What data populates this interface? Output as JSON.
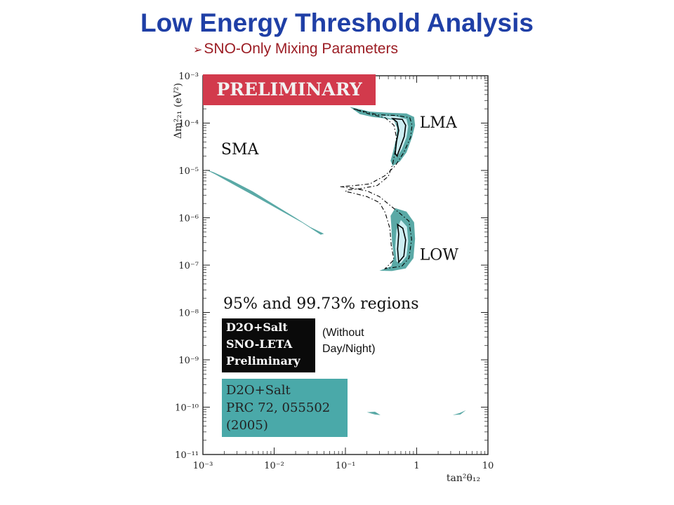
{
  "slide": {
    "title": "Low Energy Threshold Analysis",
    "subtitle": "SNO-Only Mixing Parameters",
    "note_line1": "(Without",
    "note_line2": "Day/Night)"
  },
  "chart_data": {
    "type": "contour",
    "xlabel": "tan²θ₁₂",
    "ylabel": "Δm²₂₁ (eV²)",
    "xscale": "log",
    "yscale": "log",
    "xlim": [
      0.001,
      10
    ],
    "ylim": [
      1e-11,
      0.001
    ],
    "x_ticks": [
      {
        "value": 0.001,
        "label": "10⁻³"
      },
      {
        "value": 0.01,
        "label": "10⁻²"
      },
      {
        "value": 0.1,
        "label": "10⁻¹"
      },
      {
        "value": 1,
        "label": "1"
      },
      {
        "value": 10,
        "label": "10"
      }
    ],
    "y_ticks": [
      {
        "value": 1e-11,
        "label": "10⁻¹¹"
      },
      {
        "value": 1e-10,
        "label": "10⁻¹⁰"
      },
      {
        "value": 1e-09,
        "label": "10⁻⁹"
      },
      {
        "value": 1e-08,
        "label": "10⁻⁸"
      },
      {
        "value": 1e-07,
        "label": "10⁻⁷"
      },
      {
        "value": 1e-06,
        "label": "10⁻⁶"
      },
      {
        "value": 1e-05,
        "label": "10⁻⁵"
      },
      {
        "value": 0.0001,
        "label": "10⁻⁴"
      },
      {
        "value": 0.001,
        "label": "10⁻³"
      }
    ],
    "banner": "PRELIMINARY",
    "regions_label": "95% and 99.73% regions",
    "region_labels": [
      {
        "text": "SMA",
        "x": 0.0018,
        "y": 2.2e-05
      },
      {
        "text": "LMA",
        "x": 1.1,
        "y": 8e-05
      },
      {
        "text": "LOW",
        "x": 1.1,
        "y": 1.3e-07
      }
    ],
    "legend": [
      {
        "lines": [
          "D2O+Salt",
          "SNO-LETA",
          "Preliminary"
        ],
        "style": "black-outline-contours",
        "bg": "#0a0a0a",
        "fg": "#ffffff"
      },
      {
        "lines": [
          "D2O+Salt",
          "PRC 72, 055502",
          "(2005)"
        ],
        "style": "filled-teal",
        "bg": "#4aa9a9",
        "fg": "#222222"
      }
    ],
    "colors": {
      "banner": "#d23a4c",
      "fill_outer": "#5aa9a6",
      "fill_inner": "#cdeef2",
      "contour": "#000000"
    },
    "regions": {
      "lma_outer_fill": [
        [
          0.115,
          0.00022
        ],
        [
          0.22,
          0.000175
        ],
        [
          0.4,
          0.000165
        ],
        [
          0.72,
          0.00016
        ],
        [
          0.92,
          0.000135
        ],
        [
          0.95,
          9e-05
        ],
        [
          0.86,
          5e-05
        ],
        [
          0.72,
          2.4e-05
        ],
        [
          0.58,
          1.55e-05
        ],
        [
          0.46,
          1.25e-05
        ],
        [
          0.43,
          1.6e-05
        ],
        [
          0.47,
          2.6e-05
        ],
        [
          0.52,
          5e-05
        ],
        [
          0.53,
          8e-05
        ],
        [
          0.48,
          0.000115
        ],
        [
          0.37,
          0.000125
        ],
        [
          0.24,
          0.000135
        ],
        [
          0.16,
          0.000155
        ]
      ],
      "lma_inner_fill": [
        [
          0.3,
          0.000142
        ],
        [
          0.5,
          0.00014
        ],
        [
          0.72,
          0.000122
        ],
        [
          0.76,
          8.5e-05
        ],
        [
          0.72,
          5e-05
        ],
        [
          0.62,
          2.8e-05
        ],
        [
          0.52,
          1.85e-05
        ],
        [
          0.49,
          2.6e-05
        ],
        [
          0.54,
          5e-05
        ],
        [
          0.55,
          8.5e-05
        ],
        [
          0.48,
          0.00012
        ]
      ],
      "low_outer_fill": [
        [
          0.5,
          1.6e-06
        ],
        [
          0.72,
          1.35e-06
        ],
        [
          0.92,
          8e-07
        ],
        [
          0.95,
          3.6e-07
        ],
        [
          0.9,
          1.4e-07
        ],
        [
          0.7,
          8.5e-08
        ],
        [
          0.45,
          7.5e-08
        ],
        [
          0.3,
          7.6e-08
        ],
        [
          0.44,
          9.5e-08
        ],
        [
          0.48,
          1.5e-07
        ],
        [
          0.45,
          3.2e-07
        ],
        [
          0.44,
          7e-07
        ],
        [
          0.43,
          1.1e-06
        ]
      ],
      "low_inner_fill": [
        [
          0.6,
          9e-07
        ],
        [
          0.73,
          6.5e-07
        ],
        [
          0.76,
          3.2e-07
        ],
        [
          0.72,
          1.55e-07
        ],
        [
          0.6,
          1.1e-07
        ],
        [
          0.52,
          1.2e-07
        ],
        [
          0.5,
          2.4e-07
        ],
        [
          0.52,
          5.5e-07
        ]
      ],
      "sma_band_fill": [
        [
          0.00109,
          1.05e-05
        ],
        [
          0.0015,
          8.2e-06
        ],
        [
          0.003,
          4.6e-06
        ],
        [
          0.006,
          2.6e-06
        ],
        [
          0.012,
          1.45e-06
        ],
        [
          0.025,
          7.8e-07
        ],
        [
          0.045,
          4.4e-07
        ],
        [
          0.05,
          4.6e-07
        ],
        [
          0.032,
          6.4e-07
        ],
        [
          0.02,
          1e-06
        ],
        [
          0.01,
          1.9e-06
        ],
        [
          0.005,
          3.6e-06
        ],
        [
          0.0025,
          6.2e-06
        ],
        [
          0.0014,
          9.2e-06
        ]
      ],
      "small_islands_fill": [
        [
          [
            0.2,
            7.8e-11
          ],
          [
            0.26,
            7e-11
          ],
          [
            0.31,
            6.8e-11
          ],
          [
            0.26,
            8e-11
          ]
        ],
        [
          [
            3.2,
            6.8e-11
          ],
          [
            4.0,
            7.5e-11
          ],
          [
            4.9,
            8.6e-11
          ],
          [
            4.1,
            7e-11
          ]
        ]
      ],
      "contour_9973": [
        [
          0.13,
          0.0002
        ],
        [
          0.28,
          0.00015
        ],
        [
          0.52,
          0.000145
        ],
        [
          0.8,
          0.00013
        ],
        [
          0.86,
          9e-05
        ],
        [
          0.82,
          5e-05
        ],
        [
          0.66,
          2.4e-05
        ],
        [
          0.5,
          1.25e-05
        ],
        [
          0.36,
          7.8e-06
        ],
        [
          0.22,
          5.2e-06
        ],
        [
          0.12,
          4.7e-06
        ],
        [
          0.085,
          4.55e-06
        ],
        [
          0.12,
          4.25e-06
        ],
        [
          0.2,
          3.7e-06
        ],
        [
          0.3,
          2.8e-06
        ],
        [
          0.41,
          1.9e-06
        ],
        [
          0.56,
          1.3e-06
        ],
        [
          0.78,
          8.5e-07
        ],
        [
          0.85,
          3.5e-07
        ],
        [
          0.78,
          1.4e-07
        ],
        [
          0.62,
          9.5e-08
        ],
        [
          0.36,
          8.4e-08
        ],
        [
          0.48,
          1.3e-07
        ],
        [
          0.44,
          2.6e-07
        ],
        [
          0.42,
          6e-07
        ],
        [
          0.36,
          1.3e-06
        ],
        [
          0.3,
          2.1e-06
        ],
        [
          0.2,
          2.8e-06
        ],
        [
          0.13,
          3.3e-06
        ],
        [
          0.1,
          3.6e-06
        ],
        [
          0.11,
          3.9e-06
        ],
        [
          0.16,
          4.1e-06
        ],
        [
          0.28,
          4.8e-06
        ],
        [
          0.4,
          7.5e-06
        ],
        [
          0.46,
          1.35e-05
        ],
        [
          0.5,
          2.6e-05
        ],
        [
          0.52,
          5e-05
        ],
        [
          0.48,
          9e-05
        ],
        [
          0.36,
          0.00013
        ],
        [
          0.22,
          0.000155
        ]
      ],
      "contour_95_lma": [
        [
          0.46,
          0.000125
        ],
        [
          0.63,
          0.00012
        ],
        [
          0.7,
          9e-05
        ],
        [
          0.67,
          5.2e-05
        ],
        [
          0.58,
          2.9e-05
        ],
        [
          0.53,
          2e-05
        ],
        [
          0.5,
          2.3e-05
        ],
        [
          0.52,
          4e-05
        ],
        [
          0.56,
          7e-05
        ],
        [
          0.53,
          0.000105
        ]
      ],
      "contour_95_low": [
        [
          0.54,
          7.2e-07
        ],
        [
          0.64,
          6e-07
        ],
        [
          0.7,
          3.4e-07
        ],
        [
          0.66,
          1.55e-07
        ],
        [
          0.56,
          1.15e-07
        ],
        [
          0.54,
          2.2e-07
        ],
        [
          0.56,
          4.5e-07
        ]
      ]
    }
  }
}
